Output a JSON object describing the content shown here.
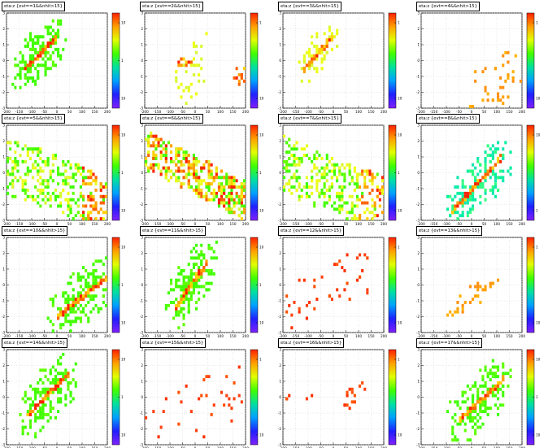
{
  "figure": {
    "x_ticks": [
      "-200",
      "-150",
      "-100",
      "-50",
      "0",
      "50",
      "100",
      "150",
      "200"
    ],
    "y_ticks": [
      "3",
      "2",
      "1",
      "0",
      "-1",
      "-2",
      "-3"
    ],
    "palette_stops": [
      "#8020ff",
      "#2020ff",
      "#00a0ff",
      "#00e0a0",
      "#40ff00",
      "#e0ff00",
      "#ffa000",
      "#ff2000"
    ]
  },
  "chart_data": [
    {
      "type": "heatmap",
      "title": "eta:z {evt==1&&nhit>15}",
      "xlim": [
        -200,
        200
      ],
      "ylim": [
        -3,
        3
      ],
      "palette_labels": [
        "10",
        "1",
        "10"
      ],
      "pattern": "line_green_bg",
      "band_x": [
        -130,
        0
      ],
      "band_y": [
        -0.6,
        1.5
      ],
      "spread": 1.3
    },
    {
      "type": "heatmap",
      "title": "eta:z {evt==2&&nhit>15}",
      "xlim": [
        -200,
        200
      ],
      "ylim": [
        -3,
        3
      ],
      "palette_labels": [
        "1",
        "10"
      ],
      "pattern": "sparse_yellow",
      "band_x": [
        -80,
        40
      ],
      "band_y": [
        -2.5,
        0.6
      ],
      "spread": 1.8
    },
    {
      "type": "heatmap",
      "title": "eta:z {evt==3&&nhit>15}",
      "xlim": [
        -200,
        200
      ],
      "ylim": [
        -3,
        3
      ],
      "palette_labels": [
        "1",
        "10"
      ],
      "pattern": "line_yellow",
      "band_x": [
        -120,
        0
      ],
      "band_y": [
        -0.6,
        1.5
      ],
      "spread": 1.0
    },
    {
      "type": "heatmap",
      "title": "eta:z {evt==4&&nhit>15}",
      "xlim": [
        -200,
        200
      ],
      "ylim": [
        -3,
        3
      ],
      "palette_labels": [
        "1",
        "10"
      ],
      "pattern": "sparse_orange",
      "band_x": [
        0,
        200
      ],
      "band_y": [
        -2.0,
        -0.5
      ],
      "spread": 1.6
    },
    {
      "type": "heatmap",
      "title": "eta:z {evt==5&&nhit>15}",
      "xlim": [
        -200,
        200
      ],
      "ylim": [
        -3,
        3
      ],
      "palette_labels": [
        "10",
        "1",
        "10"
      ],
      "pattern": "dense_cluster",
      "band_x": [
        -200,
        200
      ],
      "band_y": [
        0.5,
        -2.0
      ],
      "spread": 1.8
    },
    {
      "type": "heatmap",
      "title": "eta:z {evt==6&&nhit>15}",
      "xlim": [
        -200,
        200
      ],
      "ylim": [
        -3,
        3
      ],
      "palette_labels": [
        "10",
        "1",
        "10"
      ],
      "pattern": "dense_band",
      "band_x": [
        -200,
        200
      ],
      "band_y": [
        1.5,
        -1.8
      ],
      "spread": 1.2
    },
    {
      "type": "heatmap",
      "title": "eta:z {evt==7&&nhit>15}",
      "xlim": [
        -200,
        200
      ],
      "ylim": [
        -3,
        3
      ],
      "palette_labels": [
        "10",
        "1",
        "10"
      ],
      "pattern": "dense_cluster",
      "band_x": [
        -200,
        200
      ],
      "band_y": [
        0.5,
        -2.0
      ],
      "spread": 1.8
    },
    {
      "type": "heatmap",
      "title": "eta:z {evt==8&&nhit>15}",
      "xlim": [
        -200,
        200
      ],
      "ylim": [
        -3,
        3
      ],
      "palette_labels": [
        "10",
        "1"
      ],
      "pattern": "line_cyan_bg",
      "band_x": [
        -80,
        120
      ],
      "band_y": [
        -2.5,
        1.0
      ],
      "spread": 1.2
    },
    {
      "type": "heatmap",
      "title": "eta:z {evt==10&&nhit>15}",
      "xlim": [
        -200,
        200
      ],
      "ylim": [
        -3,
        3
      ],
      "palette_labels": [
        "10",
        "1",
        "10"
      ],
      "pattern": "line_green_bg",
      "band_x": [
        0,
        200
      ],
      "band_y": [
        -2.0,
        0.5
      ],
      "spread": 1.5
    },
    {
      "type": "heatmap",
      "title": "eta:z {evt==11&&nhit>15}",
      "xlim": [
        -200,
        200
      ],
      "ylim": [
        -3,
        3
      ],
      "palette_labels": [
        "10",
        "1",
        "10"
      ],
      "pattern": "line_green_bg",
      "band_x": [
        -80,
        50
      ],
      "band_y": [
        -1.5,
        1.5
      ],
      "spread": 1.4
    },
    {
      "type": "heatmap",
      "title": "eta:z {evt==12&&nhit>15}",
      "xlim": [
        -200,
        200
      ],
      "ylim": [
        -3,
        3
      ],
      "palette_labels": [
        "1",
        "10"
      ],
      "pattern": "sparse_red",
      "band_x": [
        -200,
        150
      ],
      "band_y": [
        -1.5,
        1.0
      ],
      "spread": 1.5
    },
    {
      "type": "heatmap",
      "title": "eta:z {evt==13&&nhit>15}",
      "xlim": [
        -200,
        200
      ],
      "ylim": [
        -3,
        3
      ],
      "palette_labels": [
        "1",
        "10"
      ],
      "pattern": "sparse_orange_line",
      "band_x": [
        -100,
        120
      ],
      "band_y": [
        -2.0,
        0.5
      ],
      "spread": 0.8
    },
    {
      "type": "heatmap",
      "title": "eta:z {evt==14&&nhit>15}",
      "xlim": [
        -200,
        200
      ],
      "ylim": [
        -3,
        3
      ],
      "palette_labels": [
        "10",
        "1",
        "10"
      ],
      "pattern": "line_green_bg",
      "band_x": [
        -120,
        50
      ],
      "band_y": [
        -1.2,
        1.5
      ],
      "spread": 1.4
    },
    {
      "type": "heatmap",
      "title": "eta:z {evt==15&&nhit>15}",
      "xlim": [
        -200,
        200
      ],
      "ylim": [
        -3,
        3
      ],
      "palette_labels": [
        "1",
        "10"
      ],
      "pattern": "sparse_red",
      "band_x": [
        -200,
        200
      ],
      "band_y": [
        -2.5,
        0.5
      ],
      "spread": 2.0
    },
    {
      "type": "heatmap",
      "title": "eta:z {evt==16&&nhit>15}",
      "xlim": [
        -200,
        200
      ],
      "ylim": [
        -3,
        3
      ],
      "palette_labels": [
        "1",
        "10"
      ],
      "pattern": "sparse_red_line",
      "band_x": [
        50,
        120
      ],
      "band_y": [
        -0.5,
        0.5
      ],
      "spread": 0.6
    },
    {
      "type": "heatmap",
      "title": "eta:z {evt==17&&nhit>15}",
      "xlim": [
        -200,
        200
      ],
      "ylim": [
        -3,
        3
      ],
      "palette_labels": [
        "10",
        "1",
        "10"
      ],
      "pattern": "line_green_bg",
      "band_x": [
        -50,
        130
      ],
      "band_y": [
        -1.5,
        1.2
      ],
      "spread": 1.5
    }
  ]
}
